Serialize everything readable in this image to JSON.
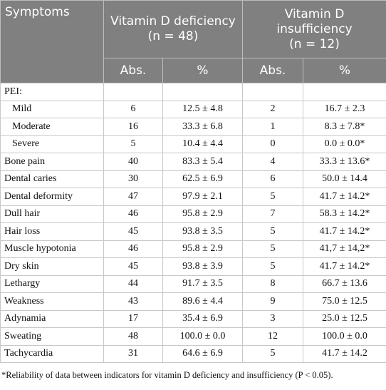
{
  "table": {
    "header": {
      "first": "Symptoms",
      "groups": [
        {
          "title": "Vitamin D deficiency",
          "n": "(n = 48)"
        },
        {
          "title": "Vitamin D insufficiency",
          "n": "(n = 12)"
        }
      ],
      "sub": [
        "Abs.",
        "%",
        "Abs.",
        "%"
      ]
    },
    "section": {
      "label": "PEI:",
      "rows": [
        [
          "Mild",
          "6",
          "12.5 ± 4.8",
          "2",
          "16.7 ± 2.3"
        ],
        [
          "Moderate",
          "16",
          "33.3 ± 6.8",
          "1",
          "8.3 ± 7.8*"
        ],
        [
          "Severe",
          "5",
          "10.4 ± 4.4",
          "0",
          "0.0 ± 0.0*"
        ]
      ]
    },
    "rows": [
      [
        "Bone pain",
        "40",
        "83.3 ± 5.4",
        "4",
        "33.3 ± 13.6*"
      ],
      [
        "Dental caries",
        "30",
        "62.5 ± 6.9",
        "6",
        "50.0 ± 14.4"
      ],
      [
        "Dental deformity",
        "47",
        "97.9 ± 2.1",
        "5",
        "41.7 ± 14.2*"
      ],
      [
        "Dull hair",
        "46",
        "95.8 ± 2.9",
        "7",
        "58.3 ± 14.2*"
      ],
      [
        "Hair loss",
        "45",
        "93.8 ± 3.5",
        "5",
        "41.7 ± 14.2*"
      ],
      [
        "Muscle hypotonia",
        "46",
        "95.8 ± 2.9",
        "5",
        "41,7 ± 14,2*"
      ],
      [
        "Dry skin",
        "45",
        "93.8 ± 3.9",
        "5",
        "41.7 ± 14.2*"
      ],
      [
        "Lethargy",
        "44",
        "91.7 ± 3.5",
        "8",
        "66.7 ± 13.6"
      ],
      [
        "Weakness",
        "43",
        "89.6 ± 4.4",
        "9",
        "75.0 ± 12.5"
      ],
      [
        "Adynamia",
        "17",
        "35.4 ± 6.9",
        "3",
        "25.0 ± 12.5"
      ],
      [
        "Sweating",
        "48",
        "100.0 ± 0.0",
        "12",
        "100.0 ± 0.0"
      ],
      [
        "Tachycardia",
        "31",
        "64.6 ± 6.9",
        "5",
        "41.7 ± 14.2"
      ]
    ],
    "footnote": "*Reliability of data between indicators for vitamin D deficiency and insufficiency (P < 0.05)."
  }
}
